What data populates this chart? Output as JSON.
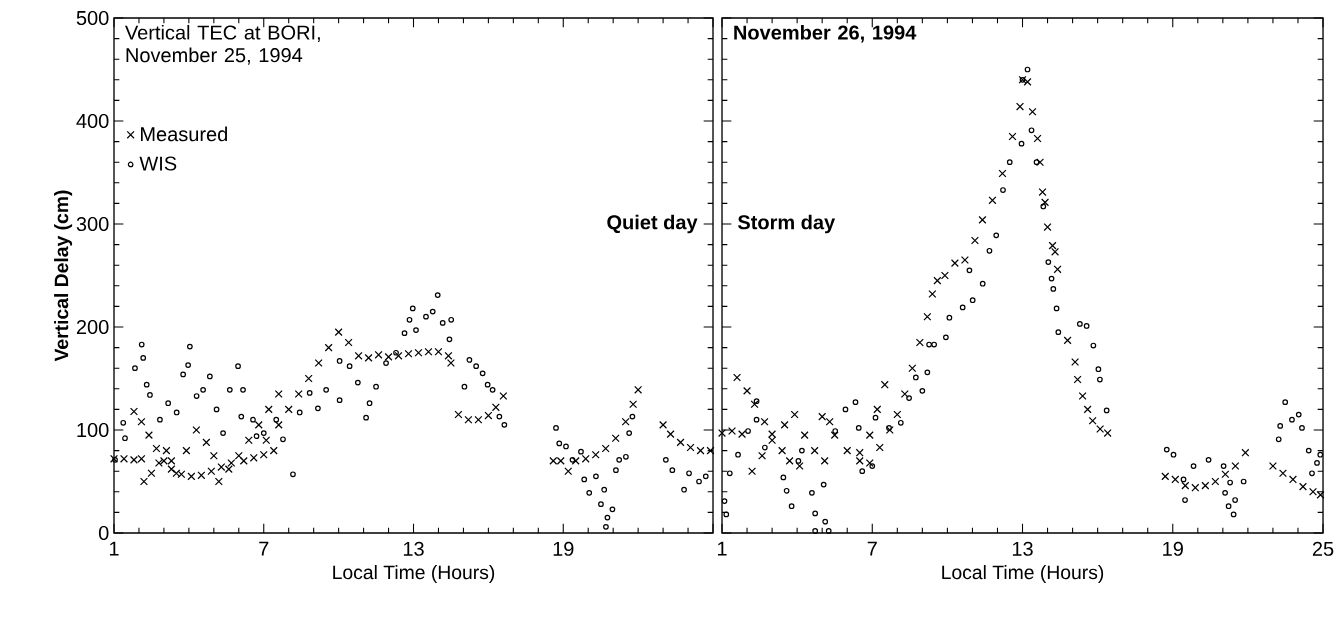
{
  "chart_data": [
    {
      "type": "scatter",
      "title": "Vertical TEC at BORI, November 25, 1994",
      "xlabel": "Local Time (Hours)",
      "ylabel": "Vertical Delay (cm)",
      "annotations": [
        "Quiet day"
      ],
      "xlim": [
        1,
        25
      ],
      "ylim": [
        0,
        500
      ],
      "xticks": [
        1,
        7,
        13,
        19,
        {
          "value": 25,
          "label": null
        }
      ],
      "yticks": [
        0,
        100,
        200,
        300,
        400,
        500
      ],
      "legend": "top left",
      "series": [
        {
          "name": "Measured",
          "color": "#000000",
          "marker": "cross",
          "x": [
            1.0,
            1.4,
            1.8,
            2.1,
            1.8,
            2.1,
            2.4,
            2.7,
            3.0,
            3.3,
            3.7,
            4.1,
            4.5,
            4.9,
            5.3,
            5.7,
            6.2,
            6.6,
            7.0,
            7.4,
            2.2,
            2.5,
            2.8,
            3.1,
            3.3,
            3.5,
            3.9,
            4.3,
            4.7,
            5.0,
            5.2,
            5.6,
            6.0,
            6.4,
            6.8,
            7.2,
            7.6,
            7.1,
            7.6,
            8.0,
            8.4,
            8.8,
            9.2,
            9.6,
            10.0,
            10.4,
            10.8,
            11.2,
            11.6,
            12.0,
            12.4,
            12.8,
            13.2,
            13.6,
            14.0,
            14.4,
            14.5,
            14.8,
            15.2,
            15.6,
            16.0,
            16.3,
            16.6,
            18.6,
            18.9,
            19.2,
            19.5,
            19.9,
            20.3,
            20.7,
            21.1,
            21.5,
            21.8,
            22.0,
            23.0,
            23.3,
            23.7,
            24.1,
            24.5,
            24.9
          ],
          "values": [
            72,
            72,
            71,
            72,
            118,
            108,
            95,
            82,
            70,
            62,
            57,
            55,
            56,
            60,
            64,
            68,
            70,
            73,
            76,
            80,
            50,
            58,
            68,
            80,
            70,
            58,
            80,
            100,
            88,
            75,
            50,
            62,
            75,
            90,
            105,
            120,
            135,
            90,
            105,
            120,
            135,
            150,
            165,
            180,
            195,
            185,
            172,
            170,
            173,
            171,
            172,
            174,
            175,
            176,
            176,
            172,
            165,
            115,
            110,
            110,
            114,
            122,
            133,
            70,
            70,
            60,
            70,
            72,
            76,
            82,
            92,
            108,
            125,
            139,
            105,
            96,
            88,
            83,
            80,
            80
          ]
        },
        {
          "name": "WIS",
          "color": "#000000",
          "marker": "circle",
          "x": [
            1.04,
            1.37,
            1.44,
            1.84,
            2.11,
            2.17,
            2.31,
            2.44,
            2.84,
            3.17,
            3.51,
            3.77,
            4.04,
            3.97,
            4.31,
            4.57,
            4.84,
            5.11,
            5.37,
            5.64,
            5.97,
            6.17,
            6.1,
            6.57,
            6.71,
            7.0,
            7.5,
            7.77,
            8.17,
            8.44,
            8.84,
            9.17,
            9.5,
            10.04,
            10.04,
            10.44,
            10.77,
            11.1,
            11.24,
            11.5,
            11.9,
            12.3,
            12.64,
            12.97,
            12.84,
            13.1,
            13.5,
            13.77,
            13.97,
            14.17,
            14.51,
            14.44,
            15.04,
            15.24,
            15.51,
            15.77,
            15.97,
            16.17,
            16.44,
            16.64,
            18.71,
            18.84,
            19.11,
            19.37,
            19.71,
            19.84,
            20.04,
            20.31,
            20.51,
            20.64,
            20.71,
            20.77,
            20.97,
            21.11,
            21.24,
            21.51,
            21.64,
            21.77,
            23.11,
            23.37,
            23.84,
            24.04,
            24.44,
            24.71
          ],
          "values": [
            71,
            107,
            92,
            160,
            183,
            170,
            144,
            134,
            110,
            126,
            117,
            154,
            181,
            163,
            133,
            139,
            152,
            120,
            97,
            139,
            162,
            139,
            113,
            110,
            94,
            97,
            110,
            91,
            57,
            117,
            136,
            121,
            139,
            129,
            167,
            162,
            146,
            112,
            126,
            142,
            165,
            175,
            194,
            218,
            207,
            197,
            210,
            215,
            231,
            204,
            207,
            188,
            142,
            168,
            162,
            155,
            144,
            139,
            113,
            105,
            102,
            87,
            84,
            71,
            79,
            52,
            39,
            55,
            28,
            42,
            6,
            15,
            23,
            61,
            71,
            74,
            97,
            113,
            71,
            61,
            42,
            58,
            50,
            55
          ]
        }
      ]
    },
    {
      "type": "scatter",
      "title": "November 26, 1994",
      "xlabel": "Local Time (Hours)",
      "annotations": [
        "Storm day"
      ],
      "xlim": [
        1,
        25
      ],
      "ylim": [
        0,
        500
      ],
      "xticks": [
        1,
        7,
        13,
        19,
        25
      ],
      "yticks": [
        0,
        100,
        200,
        300,
        400,
        500
      ],
      "tick_labels": "x",
      "series": [
        {
          "color": "#000000",
          "marker": "cross",
          "x": [
            1.0,
            1.4,
            1.8,
            1.6,
            2.0,
            2.3,
            2.7,
            3.0,
            3.4,
            3.7,
            4.1,
            2.2,
            2.6,
            3.0,
            3.5,
            3.9,
            4.3,
            4.7,
            5.1,
            5.0,
            5.3,
            5.5,
            6.0,
            6.5,
            6.9,
            6.5,
            6.9,
            7.2,
            7.5,
            7.3,
            7.7,
            8.0,
            8.3,
            8.6,
            8.9,
            9.2,
            9.4,
            9.6,
            9.9,
            10.3,
            10.7,
            11.1,
            11.4,
            11.8,
            12.2,
            12.6,
            12.9,
            13.0,
            13.2,
            13.4,
            13.6,
            13.7,
            13.8,
            13.9,
            14.0,
            14.2,
            14.3,
            14.4,
            14.8,
            15.1,
            15.2,
            15.4,
            15.6,
            15.8,
            16.1,
            16.4,
            18.7,
            19.1,
            19.5,
            19.9,
            20.3,
            20.7,
            21.1,
            21.5,
            21.9,
            23.0,
            23.4,
            23.8,
            24.2,
            24.6,
            24.9
          ],
          "values": [
            97,
            99,
            96,
            151,
            138,
            125,
            108,
            96,
            80,
            70,
            65,
            60,
            75,
            90,
            105,
            115,
            95,
            80,
            70,
            113,
            108,
            95,
            80,
            70,
            68,
            78,
            95,
            120,
            144,
            83,
            100,
            115,
            135,
            160,
            185,
            210,
            232,
            245,
            250,
            262,
            265,
            284,
            304,
            323,
            349,
            385,
            414,
            440,
            438,
            409,
            383,
            360,
            331,
            321,
            297,
            279,
            273,
            256,
            187,
            166,
            149,
            133,
            120,
            109,
            101,
            97,
            55,
            52,
            46,
            44,
            46,
            50,
            57,
            65,
            78,
            65,
            58,
            52,
            45,
            40,
            37
          ]
        },
        {
          "color": "#000000",
          "marker": "circle",
          "x": [
            1.1,
            1.17,
            1.31,
            1.64,
            2.04,
            2.38,
            2.38,
            2.71,
            3.45,
            3.58,
            3.78,
            4.05,
            4.19,
            4.59,
            4.72,
            4.72,
            5.06,
            5.12,
            5.26,
            5.52,
            5.93,
            6.33,
            6.46,
            6.6,
            7.0,
            7.13,
            7.67,
            8.14,
            8.47,
            8.74,
            9.0,
            9.2,
            9.27,
            9.47,
            9.94,
            10.08,
            10.61,
            11.01,
            10.88,
            11.41,
            11.68,
            11.95,
            12.22,
            12.49,
            12.96,
            13.0,
            13.2,
            13.36,
            13.56,
            13.83,
            14.03,
            14.16,
            14.23,
            14.36,
            14.43,
            15.29,
            15.56,
            15.83,
            16.03,
            16.09,
            16.36,
            18.76,
            19.03,
            19.43,
            19.49,
            19.83,
            20.43,
            21.03,
            21.09,
            21.29,
            21.23,
            21.43,
            21.49,
            21.83,
            23.23,
            23.29,
            23.49,
            23.76,
            24.03,
            24.16,
            24.43,
            24.56,
            24.76,
            24.89
          ],
          "values": [
            31,
            18,
            58,
            76,
            99,
            128,
            110,
            83,
            54,
            41,
            26,
            70,
            80,
            39,
            19,
            2,
            47,
            11,
            2,
            99,
            120,
            127,
            102,
            60,
            65,
            112,
            102,
            107,
            131,
            151,
            138,
            156,
            183,
            183,
            190,
            209,
            219,
            226,
            255,
            242,
            274,
            289,
            333,
            360,
            378,
            440,
            450,
            391,
            360,
            317,
            263,
            247,
            237,
            218,
            195,
            203,
            201,
            182,
            159,
            149,
            119,
            81,
            76,
            52,
            32,
            65,
            71,
            65,
            39,
            49,
            26,
            18,
            32,
            50,
            91,
            104,
            127,
            110,
            115,
            102,
            80,
            58,
            68,
            76
          ]
        }
      ]
    }
  ]
}
